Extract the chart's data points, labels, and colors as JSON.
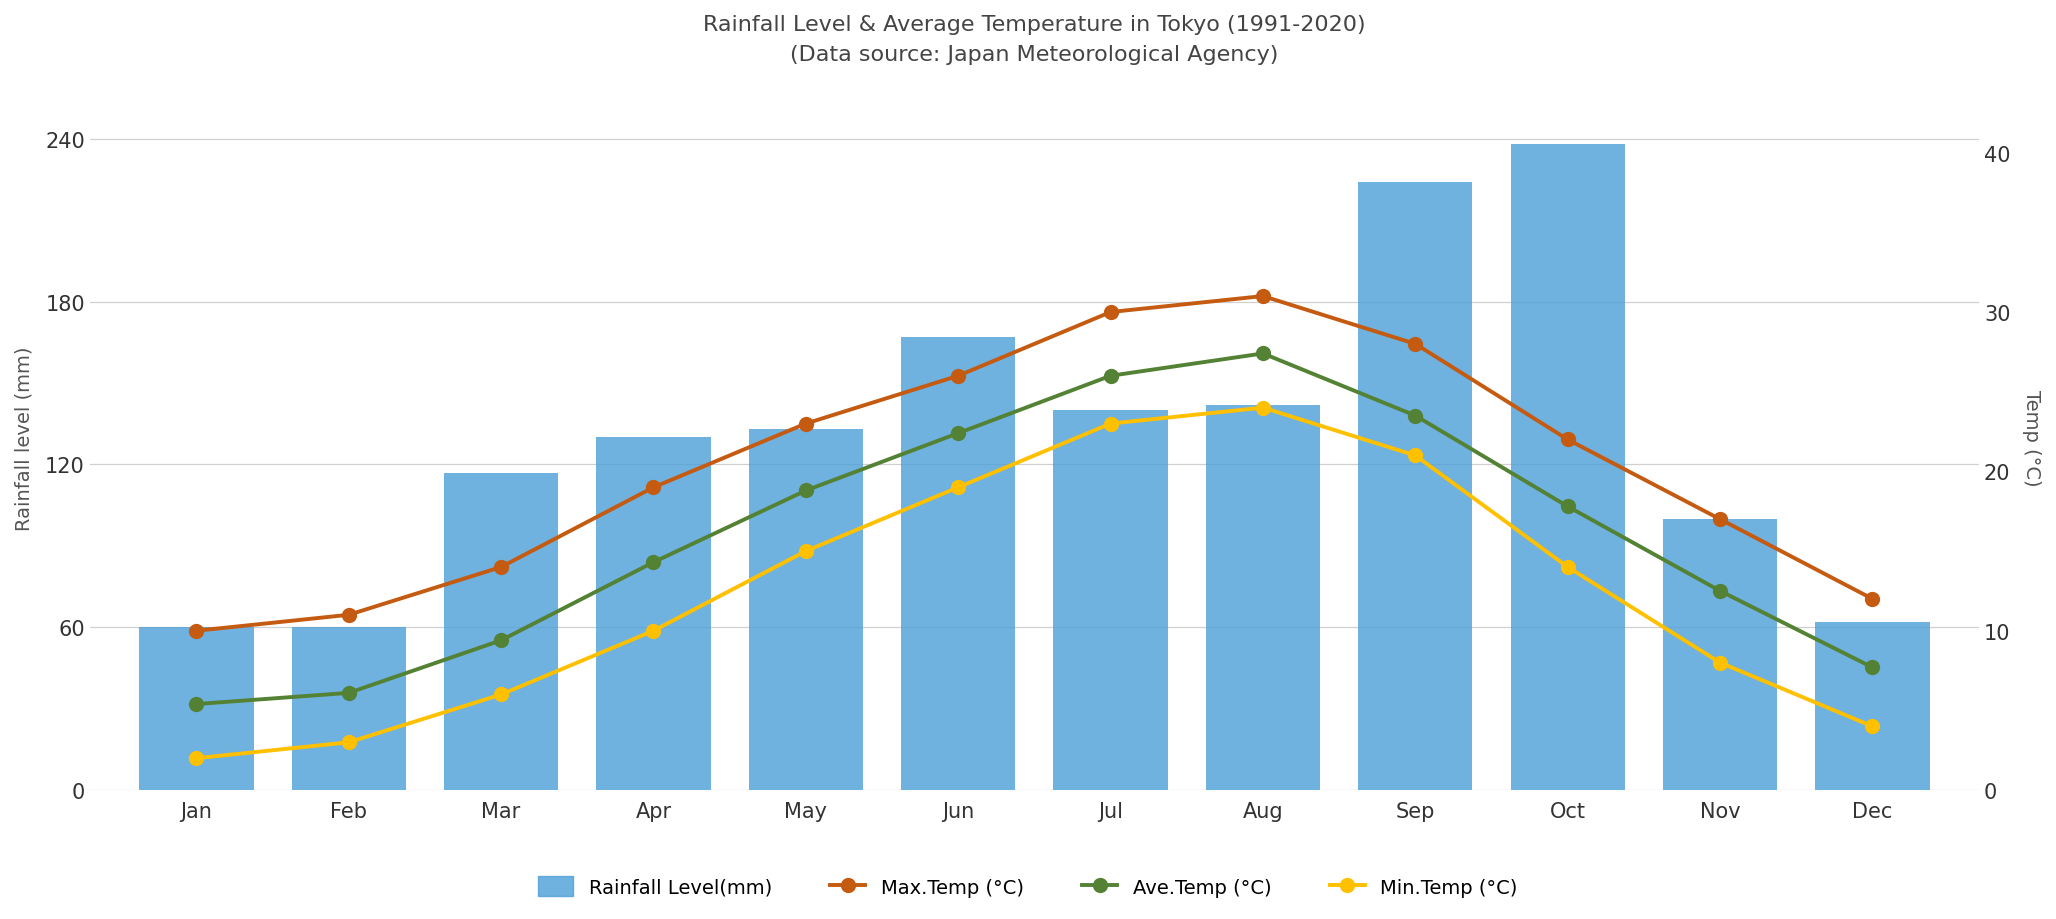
{
  "title_line1": "Rainfall Level & Average Temperature in Tokyo (1991-2020)",
  "title_line2": "(Data source: Japan Meteorological Agency)",
  "months": [
    "Jan",
    "Feb",
    "Mar",
    "Apr",
    "May",
    "Jun",
    "Jul",
    "Aug",
    "Sep",
    "Oct",
    "Nov",
    "Dec"
  ],
  "rainfall": [
    60,
    60,
    117,
    130,
    133,
    167,
    140,
    142,
    224,
    238,
    100,
    62
  ],
  "max_temp": [
    10,
    11,
    14,
    19,
    23,
    26,
    30,
    31,
    28,
    22,
    17,
    12
  ],
  "ave_temp": [
    5.4,
    6.1,
    9.4,
    14.3,
    18.8,
    22.4,
    26.0,
    27.4,
    23.5,
    17.8,
    12.5,
    7.7
  ],
  "min_temp": [
    2,
    3,
    6,
    10,
    15,
    19,
    23,
    24,
    21,
    14,
    8,
    4
  ],
  "bar_color": "#4FA0D8",
  "max_temp_color": "#C55A11",
  "ave_temp_color": "#548235",
  "min_temp_color": "#FFC000",
  "ylabel_left": "Rainfall level (mm)",
  "ylabel_right": "Temp (°C)",
  "ylim_left": [
    0,
    260
  ],
  "ylim_right": [
    0,
    44.27
  ],
  "yticks_left": [
    0,
    60,
    120,
    180,
    240
  ],
  "yticks_right": [
    0,
    10,
    20,
    30,
    40
  ],
  "legend_labels": [
    "Rainfall Level(mm)",
    "Max.Temp (°C)",
    "Ave.Temp (°C)",
    "Min.Temp (°C)"
  ],
  "background_color": "#ffffff",
  "grid_color": "#d0d0d0",
  "title_fontsize": 16,
  "label_fontsize": 14,
  "tick_fontsize": 15,
  "legend_fontsize": 14,
  "line_width": 2.8,
  "marker_size": 11,
  "bar_alpha": 0.82,
  "bar_width": 0.75
}
